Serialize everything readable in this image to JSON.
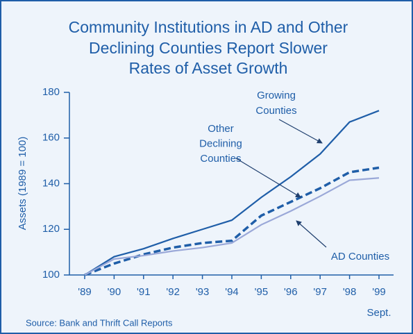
{
  "chart_data": {
    "type": "line",
    "title": [
      "Community Institutions in AD and Other",
      "Declining Counties Report Slower",
      "Rates of Asset Growth"
    ],
    "y_label": "Assets (1989 = 100)",
    "categories": [
      "'89",
      "'90",
      "'91",
      "'92",
      "'93",
      "'94",
      "'95",
      "'96",
      "'97",
      "'98",
      "'99"
    ],
    "x_note": "Sept.",
    "ylim": [
      100,
      180
    ],
    "yticks": [
      100,
      120,
      140,
      160,
      180
    ],
    "series": [
      {
        "name": "Growing Counties",
        "color": "#1f5ea8",
        "dash": false,
        "values": [
          100,
          108,
          111.5,
          116,
          120,
          124,
          134,
          143,
          153,
          167,
          172
        ]
      },
      {
        "name": "Other Declining Counties",
        "color": "#1f5ea8",
        "dash": true,
        "values": [
          100,
          105,
          109,
          112,
          114,
          115,
          126,
          132,
          138,
          145,
          147
        ]
      },
      {
        "name": "AD Counties",
        "color": "#9aa8d8",
        "dash": false,
        "values": [
          100,
          107,
          108.5,
          110.5,
          112,
          114,
          122,
          128,
          134.5,
          141.5,
          142.5
        ]
      }
    ],
    "annotations": [
      {
        "lines": [
          "Growing",
          "Counties"
        ]
      },
      {
        "lines": [
          "Other",
          "Declining",
          "Counties"
        ]
      },
      {
        "lines": [
          "AD Counties"
        ]
      }
    ],
    "source": "Source: Bank and Thrift Call Reports"
  }
}
